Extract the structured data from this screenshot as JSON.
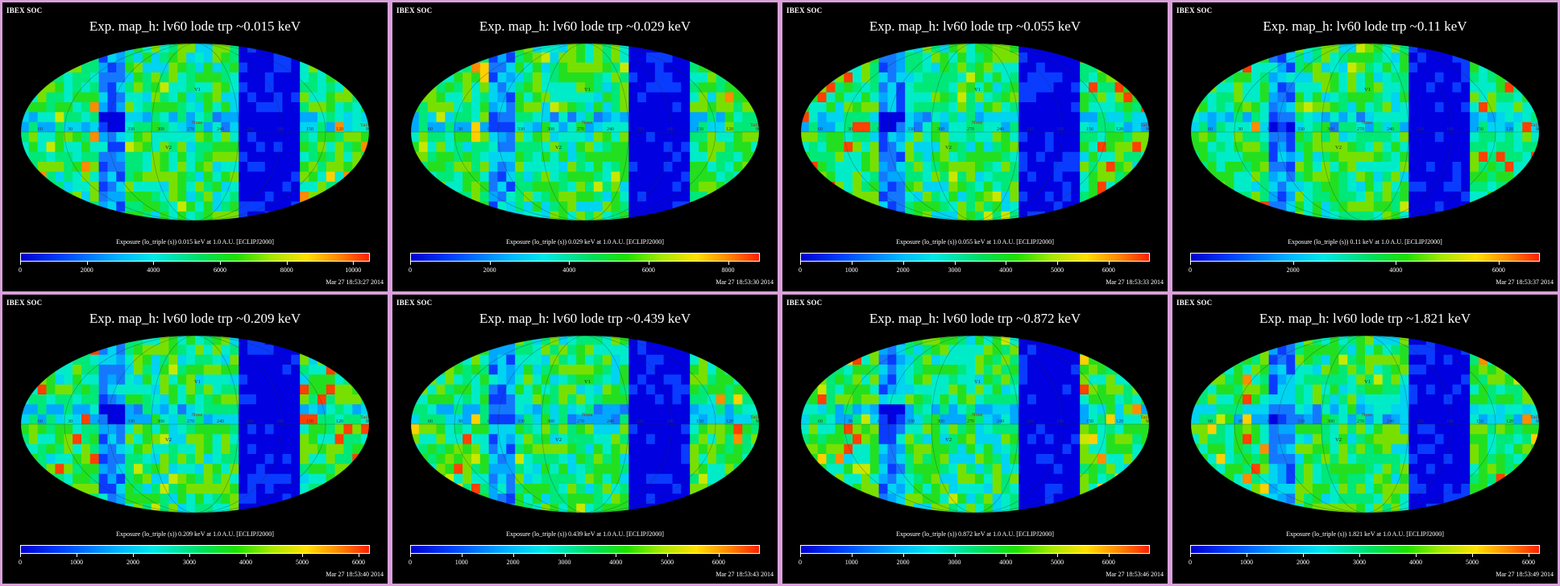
{
  "header_label": "IBEX SOC",
  "panels": [
    {
      "title": "Exp.   map_h: lv60 lode trp ~0.015 keV",
      "caption": "Exposure (lo_triple (s))  0.015 keV at 1.0 A.U. [ECLIPJ2000]",
      "colorbar_ticks": [
        "0",
        "2000",
        "4000",
        "6000",
        "8000",
        "10000"
      ],
      "colorbar_max": 10500,
      "timestamp": "Mar 27 18:53:27 2014"
    },
    {
      "title": "Exp.   map_h: lv60 lode trp ~0.029 keV",
      "caption": "Exposure (lo_triple (s))  0.029 keV at 1.0 A.U. [ECLIPJ2000]",
      "colorbar_ticks": [
        "0",
        "2000",
        "4000",
        "6000",
        "8000"
      ],
      "colorbar_max": 8800,
      "timestamp": "Mar 27 18:53:30 2014"
    },
    {
      "title": "Exp.   map_h: lv60 lode trp ~0.055 keV",
      "caption": "Exposure (lo_triple (s))  0.055 keV at 1.0 A.U. [ECLIPJ2000]",
      "colorbar_ticks": [
        "0",
        "1000",
        "2000",
        "3000",
        "4000",
        "5000",
        "6000"
      ],
      "colorbar_max": 6800,
      "timestamp": "Mar 27 18:53:33 2014"
    },
    {
      "title": "Exp.   map_h: lv60 lode trp ~0.11 keV",
      "caption": "Exposure (lo_triple (s))  0.11 keV at 1.0 A.U. [ECLIPJ2000]",
      "colorbar_ticks": [
        "0",
        "2000",
        "4000",
        "6000"
      ],
      "colorbar_max": 6800,
      "timestamp": "Mar 27 18:53:37 2014"
    },
    {
      "title": "Exp.   map_h: lv60 lode trp ~0.209 keV",
      "caption": "Exposure (lo_triple (s))  0.209 keV at 1.0 A.U. [ECLIPJ2000]",
      "colorbar_ticks": [
        "0",
        "1000",
        "2000",
        "3000",
        "4000",
        "5000",
        "6000"
      ],
      "colorbar_max": 6200,
      "timestamp": "Mar 27 18:53:40 2014"
    },
    {
      "title": "Exp.   map_h: lv60 lode trp ~0.439 keV",
      "caption": "Exposure (lo_triple (s))  0.439 keV at 1.0 A.U. [ECLIPJ2000]",
      "colorbar_ticks": [
        "0",
        "1000",
        "2000",
        "3000",
        "4000",
        "5000",
        "6000"
      ],
      "colorbar_max": 6800,
      "timestamp": "Mar 27 18:53:43 2014"
    },
    {
      "title": "Exp.   map_h: lv60 lode trp ~0.872 keV",
      "caption": "Exposure (lo_triple (s))  0.872 keV at 1.0 A.U. [ECLIPJ2000]",
      "colorbar_ticks": [
        "0",
        "1000",
        "2000",
        "3000",
        "4000",
        "5000",
        "6000"
      ],
      "colorbar_max": 6800,
      "timestamp": "Mar 27 18:53:46 2014"
    },
    {
      "title": "Exp.   map_h: lv60 lode trp ~1.821 keV",
      "caption": "Exposure (lo_triple (s))  1.821 keV at 1.0 A.U. [ECLIPJ2000]",
      "colorbar_ticks": [
        "0",
        "1000",
        "2000",
        "3000",
        "4000",
        "5000",
        "6000"
      ],
      "colorbar_max": 6200,
      "timestamp": "Mar 27 18:53:49 2014"
    }
  ],
  "map_markers": {
    "v1": "V1",
    "v2": "V2",
    "nose": "Nose",
    "tail": "Tail",
    "lon_labels": [
      "60",
      "30",
      "0",
      "330",
      "300",
      "270",
      "240",
      "210",
      "180",
      "150",
      "120",
      "90"
    ]
  },
  "colors": {
    "frame": "#d9a0d9",
    "background": "#000000"
  },
  "chart_data": {
    "type": "heatmap",
    "projection": "Mollweide (all-sky)",
    "panel_count": 8,
    "energies_keV": [
      0.015,
      0.029,
      0.055,
      0.11,
      0.209,
      0.439,
      0.872,
      1.821
    ],
    "colorbar_label": "Exposure (lo_triple (s))",
    "frame": "ECLIPJ2000"
  }
}
